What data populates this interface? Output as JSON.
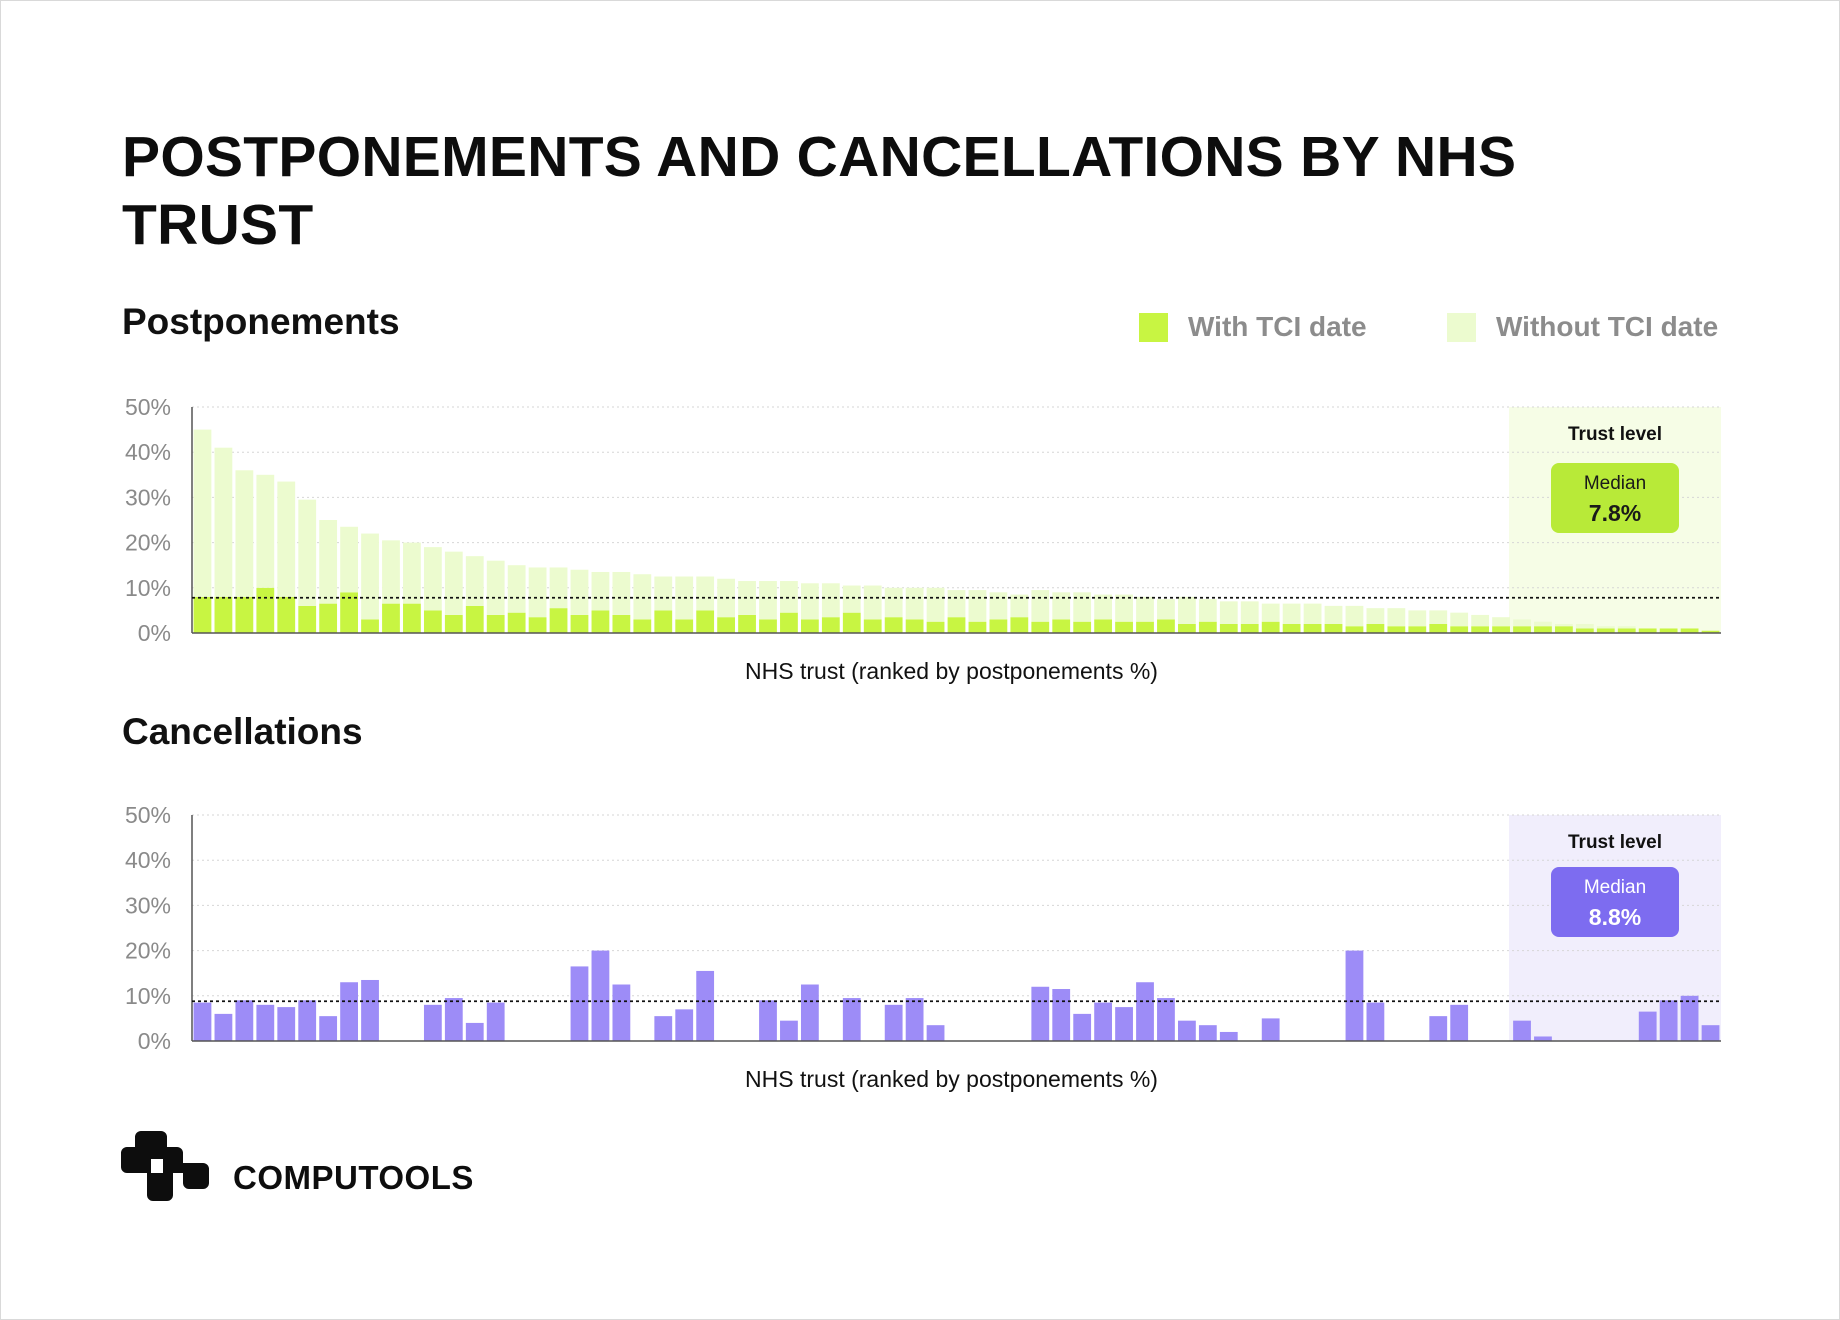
{
  "title": "POSTPONEMENTS AND CANCELLATIONS BY NHS TRUST",
  "brand": {
    "name": "COMPUTOOLS"
  },
  "colors": {
    "with_tci": "#c8f542",
    "without_tci": "#ecfbcf",
    "cancellations": "#9d8cf7",
    "median_green": "#b8ea38",
    "median_purple": "#7d6cf0",
    "panel_green": "#f6fde6",
    "panel_purple": "#f1eefc"
  },
  "chart_data": [
    {
      "type": "bar",
      "stacked": true,
      "title": "Postponements",
      "xlabel": "NHS trust (ranked by postponements %)",
      "ylabel": "",
      "ylim": [
        0,
        50
      ],
      "yticks": [
        "0%",
        "10%",
        "20%",
        "30%",
        "40%",
        "50%"
      ],
      "grid": true,
      "legend_position": "top-right",
      "legend": [
        "With TCI date",
        "Without TCI date"
      ],
      "annotation": {
        "title": "Trust level",
        "label": "Median",
        "value": "7.8%",
        "median": 7.8
      },
      "series": [
        {
          "name": "With TCI date",
          "values": [
            8,
            8,
            8,
            10,
            8,
            6,
            6.5,
            9,
            3,
            6.5,
            6.5,
            5,
            4,
            6,
            4,
            4.5,
            3.5,
            5.5,
            4,
            5,
            4,
            3,
            5,
            3,
            5,
            3.5,
            4,
            3,
            4.5,
            3,
            3.5,
            4.5,
            3,
            3.5,
            3,
            2.5,
            3.5,
            2.5,
            3,
            3.5,
            2.5,
            3,
            2.5,
            3,
            2.5,
            2.5,
            3,
            2,
            2.5,
            2,
            2,
            2.5,
            2,
            2,
            2,
            1.5,
            2,
            1.5,
            1.5,
            2,
            1.5,
            1.5,
            1.5,
            1.5,
            1.5,
            1.5,
            1,
            1,
            1,
            1,
            1,
            1,
            0.5
          ]
        },
        {
          "name": "Without TCI date",
          "values": [
            37,
            33,
            28,
            25,
            25.5,
            23.5,
            18.5,
            14.5,
            19,
            14,
            13.5,
            14,
            14,
            11,
            12,
            10.5,
            11,
            9,
            10,
            8.5,
            9.5,
            10,
            7.5,
            9.5,
            7.5,
            8.5,
            7.5,
            8.5,
            7,
            8,
            7.5,
            6,
            7.5,
            6.5,
            7,
            7.5,
            6,
            7,
            6,
            5,
            7,
            6,
            6.5,
            5.5,
            6,
            5.5,
            4.5,
            6,
            5,
            5,
            5,
            4,
            4.5,
            4.5,
            4,
            4.5,
            3.5,
            4,
            3.5,
            3,
            3,
            2.5,
            2,
            1.5,
            1,
            0.5,
            1,
            0.5,
            0.5,
            0,
            0,
            0,
            0
          ]
        }
      ]
    },
    {
      "type": "bar",
      "title": "Cancellations",
      "xlabel": "NHS trust (ranked by postponements %)",
      "ylabel": "",
      "ylim": [
        0,
        50
      ],
      "yticks": [
        "0%",
        "10%",
        "20%",
        "30%",
        "40%",
        "50%"
      ],
      "grid": true,
      "annotation": {
        "title": "Trust level",
        "label": "Median",
        "value": "8.8%",
        "median": 8.8
      },
      "series": [
        {
          "name": "",
          "values": [
            8.5,
            6,
            9,
            8,
            7.5,
            9,
            5.5,
            13,
            13.5,
            0,
            0,
            8,
            9.5,
            4,
            8.5,
            0,
            0,
            0,
            16.5,
            20,
            12.5,
            0,
            5.5,
            7,
            15.5,
            0,
            0,
            9,
            4.5,
            12.5,
            0,
            9.5,
            0,
            8,
            9.5,
            3.5,
            0,
            0,
            0,
            0,
            12,
            11.5,
            6,
            8.5,
            7.5,
            13,
            9.5,
            4.5,
            3.5,
            2,
            0,
            5,
            0,
            0,
            0,
            20,
            8.5,
            0,
            0,
            5.5,
            8,
            0,
            0,
            4.5,
            1,
            0,
            0,
            0,
            0,
            6.5,
            9,
            10,
            3.5
          ]
        }
      ]
    }
  ]
}
